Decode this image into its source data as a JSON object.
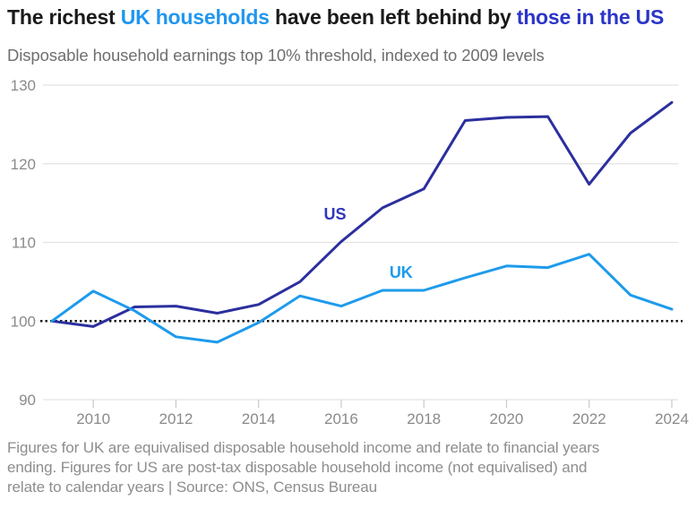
{
  "title": {
    "parts": [
      {
        "text": "The richest ",
        "style": "dark"
      },
      {
        "text": "UK households",
        "style": "uk"
      },
      {
        "text": " have been left behind by ",
        "style": "dark"
      },
      {
        "text": "those in the US",
        "style": "us"
      }
    ]
  },
  "subtitle": "Disposable household earnings top 10% threshold, indexed to 2009 levels",
  "footer_lines": [
    "Figures for UK are equivalised disposable household income and relate to financial years",
    "ending. Figures for US are post-tax disposable household income (not equivalised) and",
    "relate to calendar years | Source: ONS, Census Bureau"
  ],
  "colors": {
    "title_text": "#1a1a1a",
    "title_uk": "#2196ef",
    "title_us": "#2b35c7",
    "subtitle_text": "#6f6f6f",
    "axis_text": "#8a8a8a",
    "gridline": "#e2e2e2",
    "tick": "#c8c8c8",
    "baseline_dotted": "#141414",
    "us_line": "#2b2f9e",
    "uk_line": "#1e9beb",
    "us_label": "#3136bc",
    "uk_label": "#1e9beb",
    "footer_text": "#8d8d8d",
    "background": "#ffffff"
  },
  "chart_data": {
    "type": "line",
    "title": "The richest UK households have been left behind by those in the US",
    "subtitle": "Disposable household earnings top 10% threshold, indexed to 2009 levels",
    "x": [
      2009,
      2010,
      2011,
      2012,
      2013,
      2014,
      2015,
      2016,
      2017,
      2018,
      2019,
      2020,
      2021,
      2022,
      2023,
      2024
    ],
    "series": [
      {
        "name": "US",
        "color_key": "us_line",
        "values": [
          100,
          99.3,
          101.8,
          101.9,
          101.0,
          102.1,
          105.0,
          110.1,
          114.4,
          116.8,
          125.5,
          125.9,
          126.0,
          117.4,
          123.9,
          127.8
        ]
      },
      {
        "name": "UK",
        "color_key": "uk_line",
        "values": [
          100,
          103.8,
          101.3,
          98.0,
          97.3,
          99.8,
          103.2,
          101.9,
          103.9,
          103.9,
          105.5,
          107.0,
          106.8,
          108.5,
          103.3,
          101.5
        ]
      }
    ],
    "ylim": [
      90,
      130
    ],
    "yticks": [
      90,
      100,
      110,
      120,
      130
    ],
    "xticks": [
      2010,
      2012,
      2014,
      2016,
      2018,
      2020,
      2022,
      2024
    ],
    "baseline_value": 100,
    "grid": "horizontal",
    "legend": "inline-labels",
    "annotations": [
      {
        "text": "US",
        "x": 2015.85,
        "y": 113.6,
        "color_key": "us_label"
      },
      {
        "text": "UK",
        "x": 2017.45,
        "y": 106.2,
        "color_key": "uk_label"
      }
    ]
  }
}
